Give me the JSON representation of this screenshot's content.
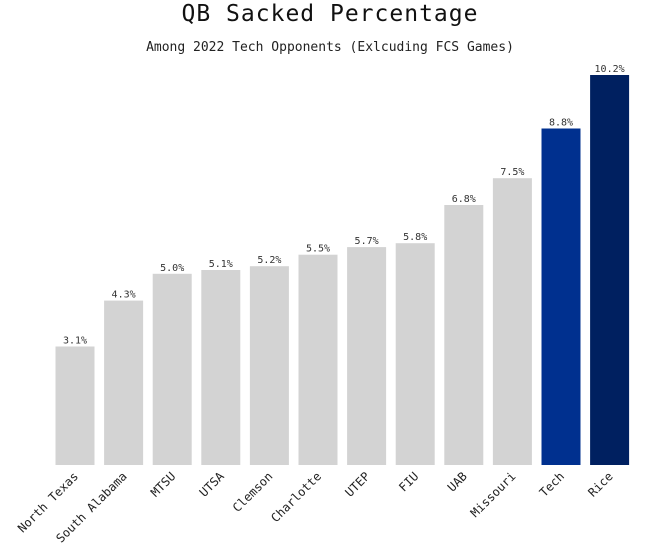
{
  "chart_data": {
    "type": "bar",
    "title": "QB Sacked Percentage",
    "subtitle": "Among 2022 Tech Opponents (Exlcuding FCS Games)",
    "xlabel": "",
    "ylabel": "",
    "ylim": [
      0,
      10.2
    ],
    "grid": false,
    "categories": [
      "North Texas",
      "South Alabama",
      "MTSU",
      "UTSA",
      "Clemson",
      "Charlotte",
      "UTEP",
      "FIU",
      "UAB",
      "Missouri",
      "Tech",
      "Rice"
    ],
    "values": [
      3.1,
      4.3,
      5.0,
      5.1,
      5.2,
      5.5,
      5.7,
      5.8,
      6.8,
      7.5,
      8.8,
      10.2
    ],
    "data_labels": [
      "3.1%",
      "4.3%",
      "5.0%",
      "5.1%",
      "5.2%",
      "5.5%",
      "5.7%",
      "5.8%",
      "6.8%",
      "7.5%",
      "8.8%",
      "10.2%"
    ],
    "colors": [
      "#d3d3d3",
      "#d3d3d3",
      "#d3d3d3",
      "#d3d3d3",
      "#d3d3d3",
      "#d3d3d3",
      "#d3d3d3",
      "#d3d3d3",
      "#d3d3d3",
      "#d3d3d3",
      "#00308f",
      "#002060"
    ]
  }
}
